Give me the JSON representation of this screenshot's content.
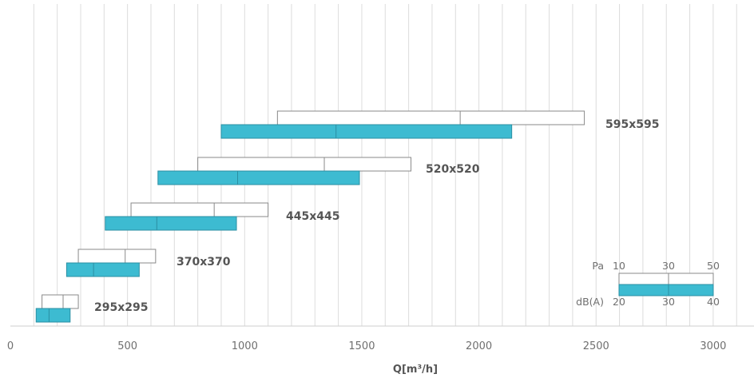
{
  "chart_data": {
    "type": "bar",
    "subtype": "floating-range",
    "xlabel": "Q[m³/h]",
    "xlim": [
      0,
      3150
    ],
    "x_ticks": [
      0,
      500,
      1000,
      1500,
      2000,
      2500,
      3000
    ],
    "x_tick_labels": [
      "0",
      "500",
      "1000",
      "1500",
      "2000",
      "2500",
      "3000"
    ],
    "grid": "vertical every 100",
    "categories": [
      "295x295",
      "370x370",
      "445x445",
      "520x520",
      "595x595"
    ],
    "series": [
      {
        "name": "Pa",
        "color": "#ffffff",
        "stroke": "#8a8a8a",
        "ranges": [
          [
            135,
            225,
            290
          ],
          [
            290,
            490,
            620
          ],
          [
            515,
            870,
            1100
          ],
          [
            800,
            1340,
            1710
          ],
          [
            1140,
            1920,
            2450
          ]
        ]
      },
      {
        "name": "dB(A)",
        "color": "#3dbbd1",
        "stroke": "#2b8fa3",
        "ranges": [
          [
            110,
            165,
            255
          ],
          [
            240,
            355,
            550
          ],
          [
            405,
            625,
            965
          ],
          [
            630,
            970,
            1490
          ],
          [
            900,
            1390,
            2140
          ]
        ]
      }
    ],
    "legend": {
      "position": "bottom-right",
      "pa_label": "Pa",
      "pa_values": [
        "10",
        "30",
        "50"
      ],
      "db_label": "dB(A)",
      "db_values": [
        "20",
        "30",
        "40"
      ]
    }
  }
}
